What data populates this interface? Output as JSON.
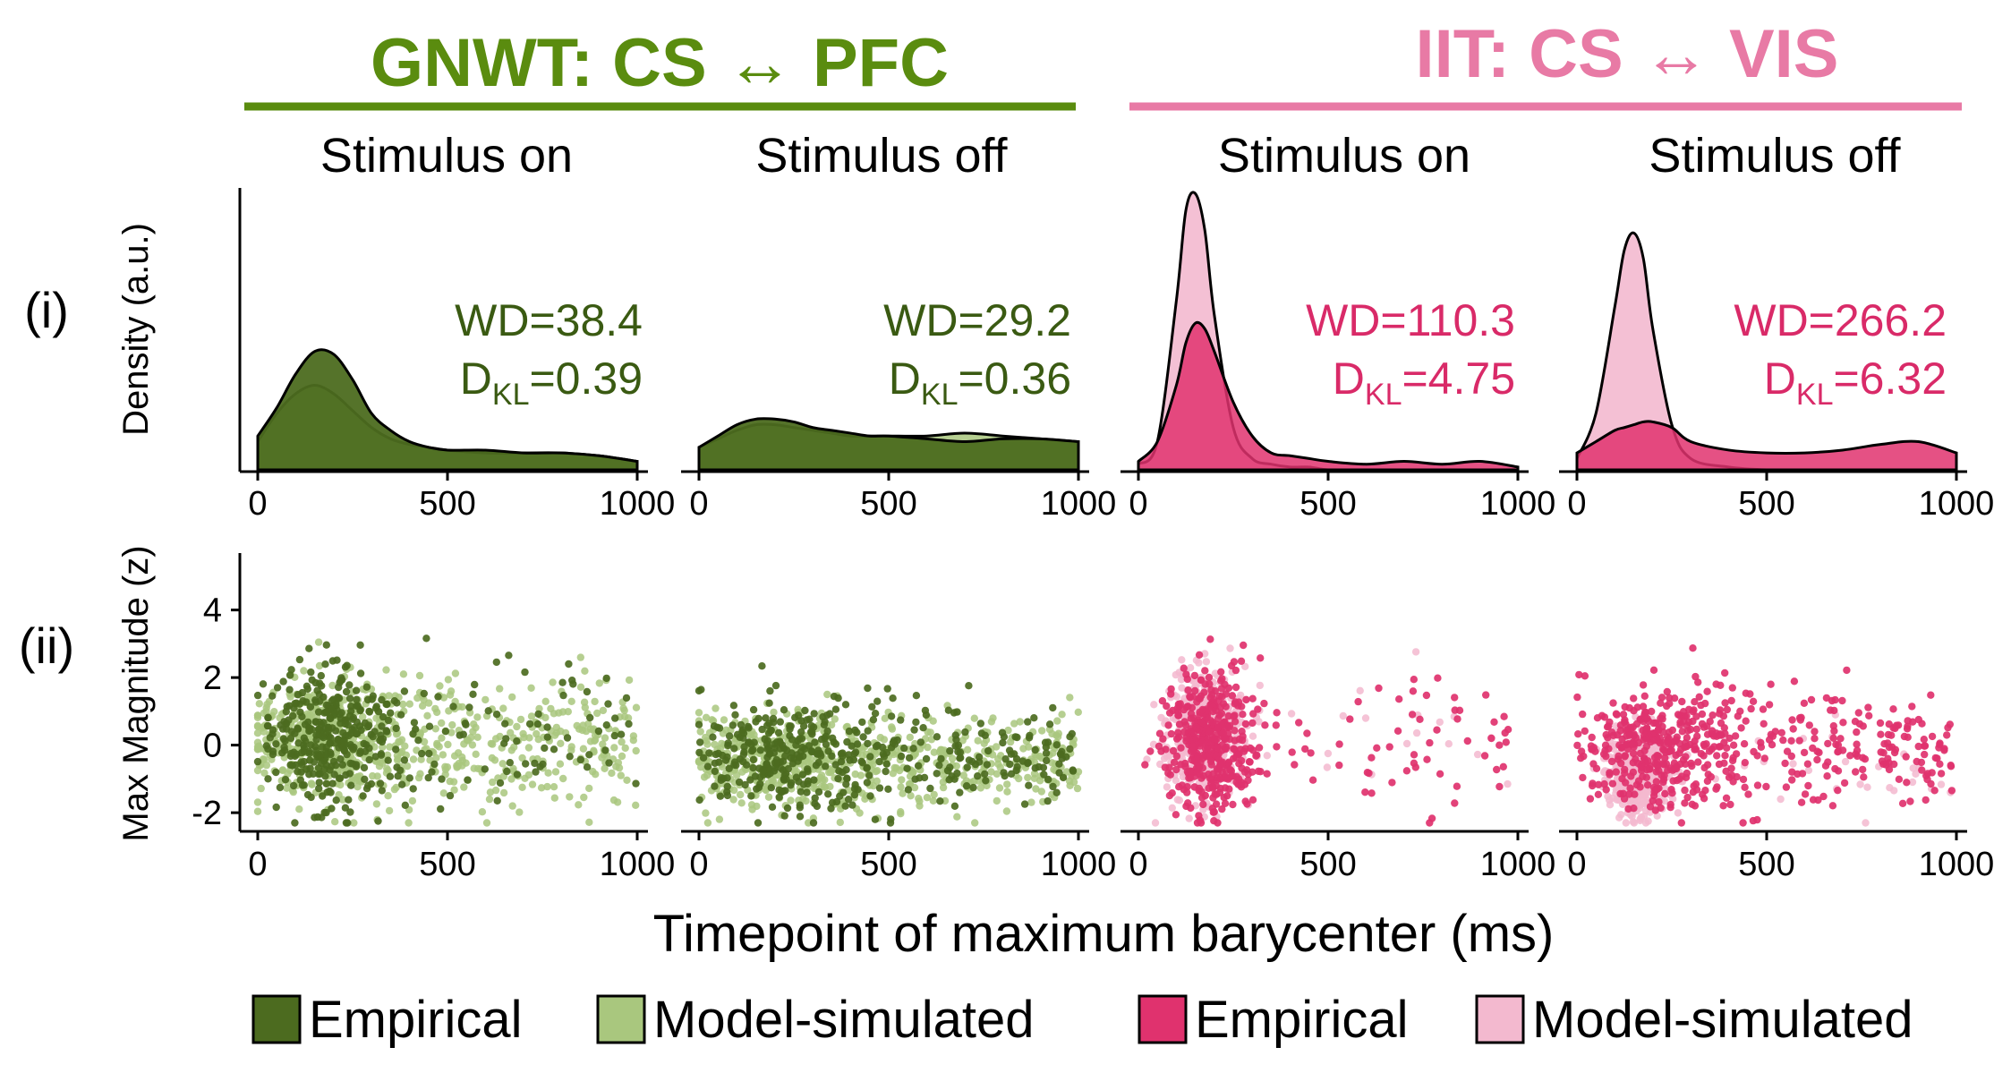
{
  "colors": {
    "gnwt_title": "#5a8c0f",
    "gnwt_empirical": "#4c6b1f",
    "gnwt_model": "#a9c77e",
    "gnwt_stat": "#3a5a12",
    "iit_title": "#e87aa5",
    "iit_empirical": "#e0326e",
    "iit_model": "#f3b9cf",
    "iit_stat": "#d92a68"
  },
  "groups": [
    {
      "title": "GNWT: CS ↔ PFC"
    },
    {
      "title": "IIT: CS ↔ VIS"
    }
  ],
  "panels": [
    {
      "title": "Stimulus on",
      "wd": "WD=38.4",
      "dkl_d": "D",
      "dkl_sub": "KL",
      "dkl_val": "=0.39"
    },
    {
      "title": "Stimulus off",
      "wd": "WD=29.2",
      "dkl_d": "D",
      "dkl_sub": "KL",
      "dkl_val": "=0.36"
    },
    {
      "title": "Stimulus on",
      "wd": "WD=110.3",
      "dkl_d": "D",
      "dkl_sub": "KL",
      "dkl_val": "=4.75"
    },
    {
      "title": "Stimulus off",
      "wd": "WD=266.2",
      "dkl_d": "D",
      "dkl_sub": "KL",
      "dkl_val": "=6.32"
    }
  ],
  "rows": {
    "row1_label": "(i)",
    "row2_label": "(ii)",
    "row1_ylabel": "Density (a.u.)",
    "row2_ylabel": "Max Magnitude (z)"
  },
  "xlabel": "Timepoint of maximum barycenter (ms)",
  "legend": [
    {
      "label": "Empirical"
    },
    {
      "label": "Model-simulated"
    },
    {
      "label": "Empirical"
    },
    {
      "label": "Model-simulated"
    }
  ],
  "chart_data": [
    {
      "type": "area",
      "panel": "GNWT Stimulus on",
      "x": [
        0,
        50,
        100,
        150,
        200,
        250,
        300,
        350,
        400,
        450,
        500,
        600,
        700,
        800,
        900,
        1000
      ],
      "series": [
        {
          "name": "Empirical",
          "values": [
            0.12,
            0.22,
            0.34,
            0.42,
            0.41,
            0.32,
            0.2,
            0.14,
            0.1,
            0.08,
            0.07,
            0.07,
            0.06,
            0.06,
            0.05,
            0.03
          ]
        },
        {
          "name": "Model-simulated",
          "values": [
            0.1,
            0.2,
            0.27,
            0.3,
            0.27,
            0.21,
            0.15,
            0.11,
            0.09,
            0.08,
            0.07,
            0.06,
            0.06,
            0.06,
            0.05,
            0.03
          ]
        }
      ],
      "xlim": [
        0,
        1000
      ],
      "stats": {
        "WD": 38.4,
        "D_KL": 0.39
      }
    },
    {
      "type": "area",
      "panel": "GNWT Stimulus off",
      "x": [
        0,
        50,
        100,
        150,
        200,
        250,
        300,
        350,
        400,
        450,
        500,
        600,
        700,
        800,
        900,
        1000
      ],
      "series": [
        {
          "name": "Empirical",
          "values": [
            0.08,
            0.12,
            0.16,
            0.18,
            0.18,
            0.17,
            0.15,
            0.14,
            0.13,
            0.12,
            0.12,
            0.11,
            0.1,
            0.11,
            0.11,
            0.1
          ]
        },
        {
          "name": "Model-simulated",
          "values": [
            0.08,
            0.11,
            0.14,
            0.16,
            0.16,
            0.15,
            0.14,
            0.13,
            0.12,
            0.12,
            0.12,
            0.12,
            0.13,
            0.12,
            0.11,
            0.1
          ]
        }
      ],
      "xlim": [
        0,
        1000
      ],
      "stats": {
        "WD": 29.2,
        "D_KL": 0.36
      }
    },
    {
      "type": "area",
      "panel": "IIT Stimulus on",
      "x": [
        0,
        50,
        100,
        125,
        150,
        175,
        200,
        250,
        300,
        350,
        400,
        450,
        500,
        600,
        700,
        800,
        900,
        1000
      ],
      "series": [
        {
          "name": "Empirical",
          "values": [
            0.03,
            0.1,
            0.3,
            0.45,
            0.52,
            0.5,
            0.42,
            0.24,
            0.12,
            0.06,
            0.05,
            0.04,
            0.03,
            0.02,
            0.03,
            0.02,
            0.03,
            0.01
          ]
        },
        {
          "name": "Model-simulated",
          "values": [
            0.02,
            0.1,
            0.6,
            0.92,
            0.98,
            0.85,
            0.55,
            0.15,
            0.04,
            0.02,
            0.01,
            0.01,
            0.0,
            0.0,
            0.0,
            0.0,
            0.0,
            0.0
          ]
        }
      ],
      "xlim": [
        0,
        1000
      ],
      "stats": {
        "WD": 110.3,
        "D_KL": 4.75
      }
    },
    {
      "type": "area",
      "panel": "IIT Stimulus off",
      "x": [
        0,
        50,
        100,
        125,
        150,
        175,
        200,
        250,
        300,
        400,
        500,
        600,
        700,
        800,
        900,
        1000
      ],
      "series": [
        {
          "name": "Empirical",
          "values": [
            0.06,
            0.1,
            0.14,
            0.15,
            0.16,
            0.17,
            0.17,
            0.15,
            0.1,
            0.07,
            0.06,
            0.06,
            0.07,
            0.09,
            0.1,
            0.06
          ]
        },
        {
          "name": "Model-simulated",
          "values": [
            0.04,
            0.2,
            0.58,
            0.78,
            0.84,
            0.75,
            0.5,
            0.16,
            0.04,
            0.01,
            0.0,
            0.0,
            0.0,
            0.0,
            0.0,
            0.0
          ]
        }
      ],
      "xlim": [
        0,
        1000
      ],
      "stats": {
        "WD": 266.2,
        "D_KL": 6.32
      }
    },
    {
      "type": "scatter",
      "panels": [
        "GNWT Stimulus on",
        "GNWT Stimulus off",
        "IIT Stimulus on",
        "IIT Stimulus off"
      ],
      "series": [
        "Empirical",
        "Model-simulated"
      ],
      "xlim": [
        0,
        1000
      ],
      "ylim": [
        -2.5,
        5.5
      ],
      "yticks": [
        -2,
        0,
        2,
        4
      ],
      "xticks": [
        0,
        500,
        1000
      ]
    }
  ]
}
